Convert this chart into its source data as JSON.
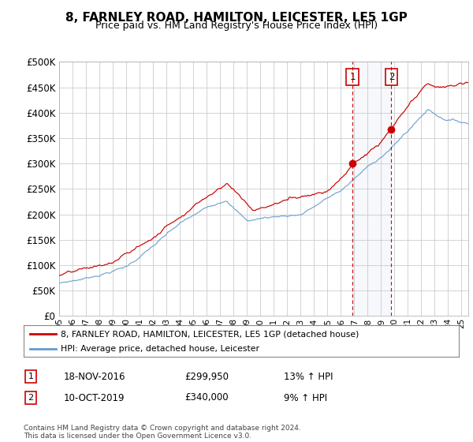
{
  "title": "8, FARNLEY ROAD, HAMILTON, LEICESTER, LE5 1GP",
  "subtitle": "Price paid vs. HM Land Registry's House Price Index (HPI)",
  "ylim": [
    0,
    500000
  ],
  "yticks": [
    0,
    50000,
    100000,
    150000,
    200000,
    250000,
    300000,
    350000,
    400000,
    450000,
    500000
  ],
  "ytick_labels": [
    "£0",
    "£50K",
    "£100K",
    "£150K",
    "£200K",
    "£250K",
    "£300K",
    "£350K",
    "£400K",
    "£450K",
    "£500K"
  ],
  "background_color": "#ffffff",
  "grid_color": "#cccccc",
  "red_color": "#cc0000",
  "blue_color": "#6699cc",
  "marker1_year": 2016.88,
  "marker2_year": 2019.77,
  "marker1_label": "1",
  "marker2_label": "2",
  "marker1_date": "18-NOV-2016",
  "marker1_price": "£299,950",
  "marker1_hpi": "13% ↑ HPI",
  "marker2_date": "10-OCT-2019",
  "marker2_price": "£340,000",
  "marker2_hpi": "9% ↑ HPI",
  "legend_line1": "8, FARNLEY ROAD, HAMILTON, LEICESTER, LE5 1GP (detached house)",
  "legend_line2": "HPI: Average price, detached house, Leicester",
  "footnote": "Contains HM Land Registry data © Crown copyright and database right 2024.\nThis data is licensed under the Open Government Licence v3.0.",
  "title_fontsize": 11,
  "subtitle_fontsize": 9,
  "xlim_start": 1995,
  "xlim_end": 2025.5
}
